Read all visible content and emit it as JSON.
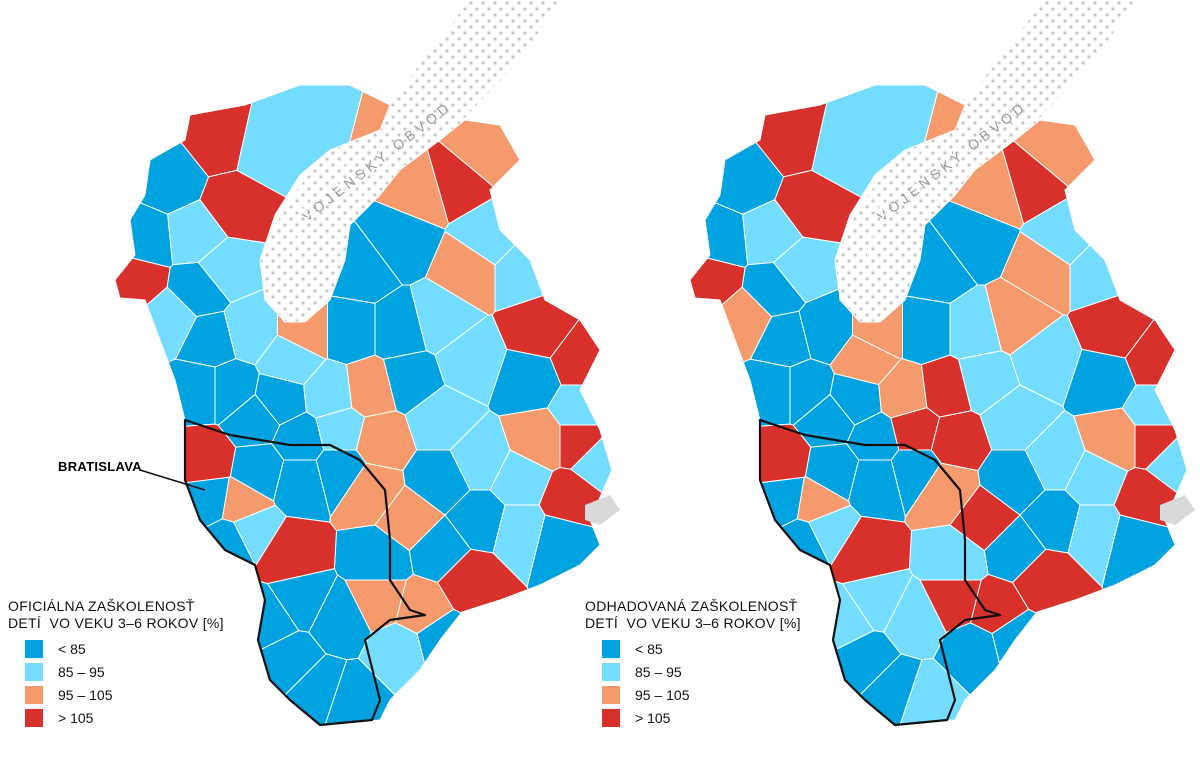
{
  "colors": {
    "lt85": "#00a3e0",
    "b85_95": "#73dcff",
    "b95_105": "#f49a6c",
    "gt105": "#d8302a",
    "dots": "#c9c9c9",
    "grey": "#d9d9d9",
    "border": "#111111"
  },
  "zone_label": "VOJENSKÝ OBVOD",
  "city_label": "BRATISLAVA",
  "maps": [
    {
      "legend_title": "OFICIÁLNA ZAŠKOLENOSŤ\nDETÍ  VO VEKU 3–6 ROKOV [%]",
      "legend": [
        {
          "label": "< 85",
          "cat": "D"
        },
        {
          "label": "85 – 95",
          "cat": "L"
        },
        {
          "label": "95 – 105",
          "cat": "O"
        },
        {
          "label": "> 105",
          "cat": "R"
        }
      ],
      "regions": [
        "R",
        "R",
        "L",
        "D",
        "D",
        "R",
        "L",
        "D",
        "L",
        "L",
        "D",
        "L",
        "L",
        "O",
        "D",
        "D",
        "D",
        "L",
        "O",
        "D",
        "D",
        "O",
        "R",
        "O",
        "L",
        "O",
        "L",
        "R",
        "R",
        "L",
        "D",
        "D",
        "D",
        "L",
        "D",
        "L",
        "O",
        "R",
        "L",
        "R",
        "L",
        "L",
        "L",
        "O",
        "L",
        "D",
        "D",
        "R",
        "O",
        "D",
        "D",
        "D",
        "D",
        "O",
        "O",
        "D",
        "D",
        "L",
        "D",
        "R",
        "D",
        "D",
        "R",
        "L",
        "D",
        "D",
        "D",
        "O",
        "D",
        "L",
        "O",
        "D",
        "D",
        "D",
        "D"
      ]
    },
    {
      "legend_title": "ODHADOVANÁ ZAŠKOLENOSŤ\nDETÍ  VO VEKU 3–6 ROKOV [%]",
      "legend": [
        {
          "label": "< 85",
          "cat": "D"
        },
        {
          "label": "85 – 95",
          "cat": "L"
        },
        {
          "label": "95 – 105",
          "cat": "O"
        },
        {
          "label": "> 105",
          "cat": "R"
        }
      ],
      "regions": [
        "R",
        "R",
        "L",
        "D",
        "D",
        "R",
        "L",
        "D",
        "L",
        "O",
        "D",
        "D",
        "O",
        "O",
        "D",
        "D",
        "D",
        "O",
        "R",
        "D",
        "D",
        "O",
        "R",
        "O",
        "L",
        "O",
        "L",
        "R",
        "R",
        "O",
        "L",
        "D",
        "L",
        "L",
        "D",
        "L",
        "O",
        "R",
        "L",
        "R",
        "L",
        "L",
        "L",
        "R",
        "R",
        "D",
        "D",
        "R",
        "O",
        "D",
        "D",
        "D",
        "D",
        "O",
        "R",
        "D",
        "D",
        "L",
        "D",
        "R",
        "D",
        "L",
        "R",
        "L",
        "L",
        "D",
        "L",
        "R",
        "L",
        "D",
        "R",
        "D",
        "D",
        "L",
        "D"
      ]
    }
  ]
}
